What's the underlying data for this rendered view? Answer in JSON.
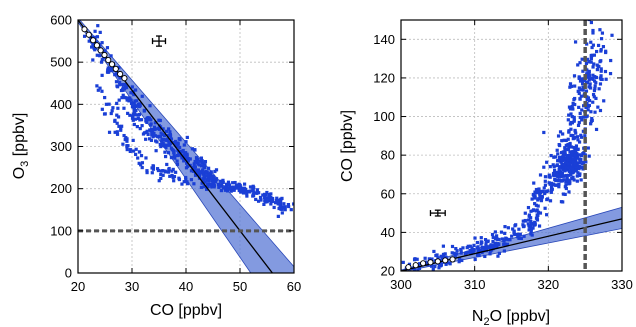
{
  "chart_data": [
    {
      "type": "scatter",
      "title": "",
      "xlabel": "CO [ppbv]",
      "ylabel": "O3 [ppbv]",
      "ylabel_parts": [
        "O",
        "3",
        " [ppbv]"
      ],
      "xlim": [
        20,
        60
      ],
      "ylim": [
        0,
        600
      ],
      "xticks": [
        20,
        30,
        40,
        50,
        60
      ],
      "yticks": [
        0,
        100,
        200,
        300,
        400,
        500,
        600
      ],
      "grid": true,
      "colors": {
        "points": "#1a3fd6",
        "band": "#5a78d6",
        "line": "#000000",
        "threshold": "#555555"
      },
      "threshold": {
        "axis": "y",
        "value": 100
      },
      "error_bar": {
        "x": 35,
        "y": 550,
        "xerr": 1.2,
        "yerr": 12
      },
      "fit": {
        "x": [
          20,
          56
        ],
        "y": [
          600,
          0
        ]
      },
      "band": {
        "upper": [
          [
            20,
            605
          ],
          [
            61,
            0
          ]
        ],
        "lower": [
          [
            20,
            595
          ],
          [
            52,
            0
          ]
        ]
      },
      "reference_points": {
        "x": [
          21.2,
          22.0,
          22.8,
          23.5,
          24.2,
          24.9,
          25.6,
          26.3,
          27.0,
          27.8,
          28.6
        ],
        "y": [
          578,
          565,
          552,
          540,
          528,
          517,
          505,
          495,
          484,
          472,
          462
        ]
      },
      "clusters": [
        {
          "x": [
            22.5,
            24.5,
            26.5,
            28.5,
            30.5,
            33,
            36,
            39,
            42,
            44,
            46
          ],
          "y": [
            560,
            520,
            480,
            440,
            400,
            360,
            330,
            290,
            260,
            230,
            210
          ],
          "n": 260,
          "sx": 0.5,
          "sy": 14
        },
        {
          "x": [
            28,
            30,
            32,
            34,
            36,
            38,
            40,
            42,
            44
          ],
          "y": [
            410,
            375,
            345,
            320,
            300,
            285,
            260,
            240,
            220
          ],
          "n": 110,
          "sx": 0.6,
          "sy": 10
        },
        {
          "x": [
            24,
            26,
            28,
            30,
            32,
            35,
            38,
            41
          ],
          "y": [
            440,
            380,
            330,
            290,
            260,
            240,
            225,
            215
          ],
          "n": 90,
          "sx": 0.5,
          "sy": 10
        },
        {
          "x": [
            44,
            47,
            50,
            53,
            56,
            59
          ],
          "y": [
            215,
            208,
            200,
            190,
            172,
            148
          ],
          "n": 160,
          "sx": 0.8,
          "sy": 6
        }
      ]
    },
    {
      "type": "scatter",
      "title": "",
      "xlabel": "N2O [ppbv]",
      "xlabel_parts": [
        "N",
        "2",
        "O [ppbv]"
      ],
      "ylabel": "CO [ppbv]",
      "xlim": [
        300,
        330
      ],
      "ylim": [
        20,
        150
      ],
      "xticks": [
        300,
        310,
        320,
        330
      ],
      "yticks": [
        20,
        40,
        60,
        80,
        100,
        120,
        140
      ],
      "grid": true,
      "colors": {
        "points": "#1a3fd6",
        "band": "#5a78d6",
        "line": "#000000",
        "threshold": "#555555"
      },
      "threshold": {
        "axis": "x",
        "value": 325
      },
      "error_bar": {
        "x": 305,
        "y": 50,
        "xerr": 1.0,
        "yerr": 1.5
      },
      "fit": {
        "x": [
          300,
          330
        ],
        "y": [
          20,
          47
        ]
      },
      "band": {
        "upper": [
          [
            300,
            20.5
          ],
          [
            330,
            53
          ]
        ],
        "lower": [
          [
            300,
            19.5
          ],
          [
            330,
            42
          ]
        ]
      },
      "reference_points": {
        "x": [
          301.0,
          302.0,
          303.0,
          304.0,
          305.0,
          306.0,
          307.0
        ],
        "y": [
          22,
          23,
          24,
          24.5,
          25,
          25.5,
          26
        ]
      },
      "clusters": [
        {
          "x": [
            301,
            303,
            305,
            307,
            309,
            311,
            313,
            315,
            317,
            319
          ],
          "y": [
            21,
            23,
            25,
            27,
            30,
            32,
            35,
            38,
            42,
            50
          ],
          "n": 230,
          "sx": 0.7,
          "sy": 2.2
        },
        {
          "x": [
            318,
            319,
            320,
            321,
            322,
            323,
            324
          ],
          "y": [
            52,
            58,
            65,
            70,
            75,
            78,
            80
          ],
          "n": 140,
          "sx": 0.6,
          "sy": 5
        },
        {
          "x": [
            322,
            323,
            324,
            325,
            326,
            327
          ],
          "y": [
            70,
            85,
            100,
            112,
            125,
            138
          ],
          "n": 260,
          "sx": 0.9,
          "sy": 10
        },
        {
          "x": [
            322,
            323,
            324
          ],
          "y": [
            72,
            76,
            80
          ],
          "n": 120,
          "sx": 0.8,
          "sy": 4
        }
      ]
    }
  ]
}
